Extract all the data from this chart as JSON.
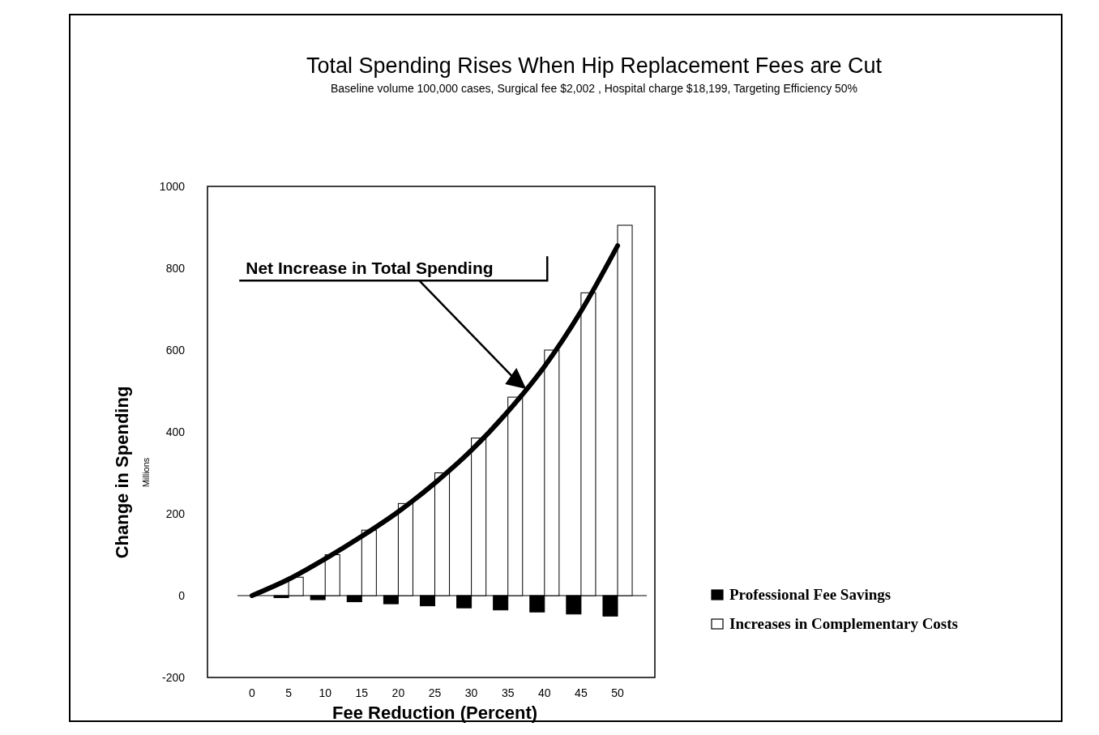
{
  "chart_data": {
    "type": "bar",
    "title": "Total Spending Rises When Hip Replacement Fees are Cut",
    "subtitle": "Baseline volume 100,000 cases, Surgical fee $2,002 , Hospital charge  $18,199, Targeting Efficiency 50%",
    "xlabel": "Fee Reduction (Percent)",
    "ylabel": "Change in Spending",
    "annotations": [
      "Millions"
    ],
    "categories": [
      "0",
      "5",
      "10",
      "15",
      "20",
      "25",
      "30",
      "35",
      "40",
      "45",
      "50"
    ],
    "series": [
      {
        "name": "Professional Fee Savings",
        "color": "#000000",
        "values": [
          0,
          -5,
          -10,
          -15,
          -20,
          -25,
          -30,
          -35,
          -40,
          -45,
          -50
        ]
      },
      {
        "name": "Increases in Complementary Costs",
        "color": "#ffffff",
        "values": [
          0,
          45,
          100,
          160,
          225,
          300,
          385,
          485,
          600,
          740,
          905
        ]
      },
      {
        "name": "Net Increase in Total Spending",
        "type": "line",
        "color": "#000000",
        "values": [
          0,
          40,
          90,
          145,
          205,
          275,
          355,
          450,
          560,
          695,
          855
        ]
      }
    ],
    "ylim": [
      -200,
      1000
    ],
    "yticks": [
      -200,
      0,
      200,
      400,
      600,
      800,
      1000
    ],
    "legend": "right",
    "marker": "none",
    "line_style": "solid"
  }
}
